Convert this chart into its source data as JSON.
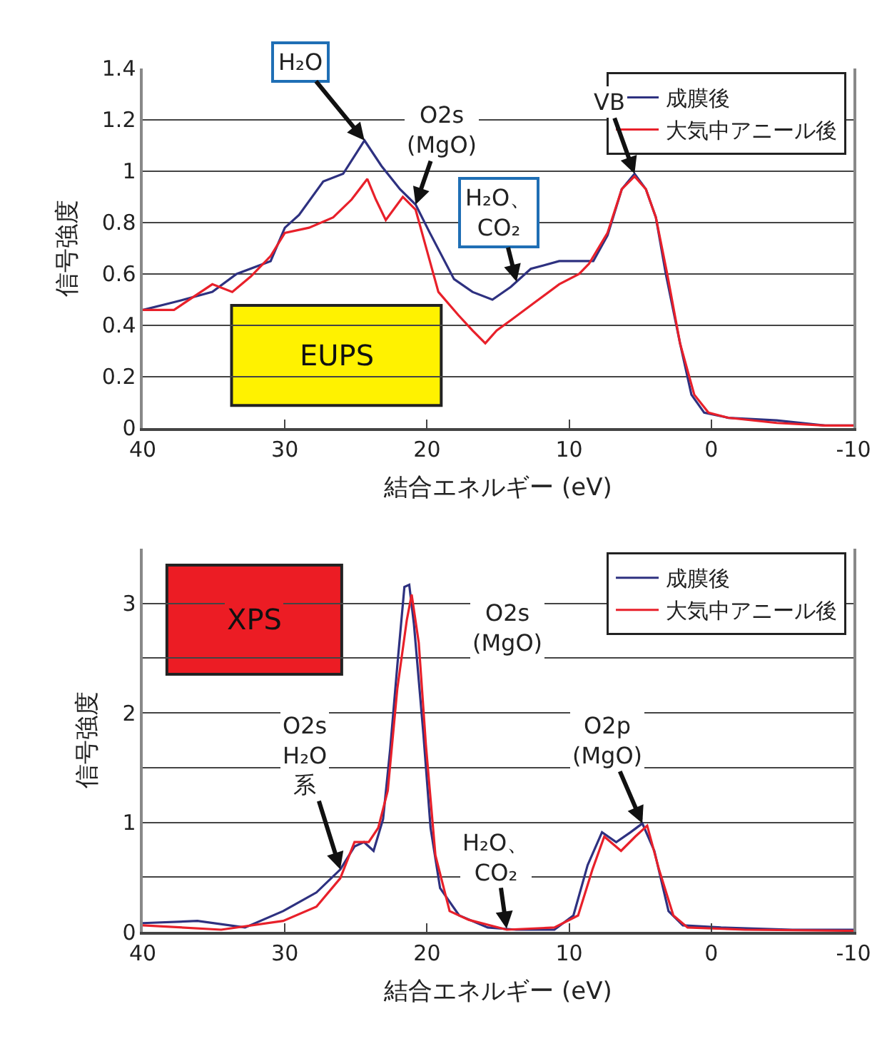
{
  "chart_data": [
    {
      "type": "line",
      "xlabel": "結合エネルギー (eV)",
      "ylabel": "信号強度",
      "xlim": [
        40,
        -10
      ],
      "xticks": [
        40,
        30,
        20,
        10,
        0,
        -10
      ],
      "ylim": [
        0,
        1.4
      ],
      "yticks": [
        0,
        0.2,
        0.4,
        0.6,
        0.8,
        1,
        1.2,
        1.4
      ],
      "grid": "y",
      "legend": "top right",
      "annotations": [
        {
          "text": "H₂O",
          "x": 24.4,
          "y": 1.12
        },
        {
          "text": "O2s\n(MgO)",
          "x": 20.8,
          "y": 0.87
        },
        {
          "text": "H₂O、\nCO₂",
          "x": 13.7,
          "y": 0.57
        },
        {
          "text": "VB",
          "x": 5.4,
          "y": 0.99
        },
        "EUPS"
      ],
      "series": [
        {
          "name": "成膜後",
          "color": "#2e3180",
          "x": [
            40,
            37.8,
            35.1,
            33.4,
            31.0,
            30.0,
            29.0,
            27.3,
            25.9,
            24.4,
            23.2,
            21.9,
            20.8,
            19.8,
            18.1,
            16.8,
            15.4,
            14.1,
            12.7,
            10.7,
            8.3,
            7.3,
            6.3,
            5.4,
            4.6,
            3.9,
            3.2,
            2.2,
            1.4,
            0.5,
            -1.2,
            -4.6,
            -8.0,
            -10
          ],
          "values": [
            0.46,
            0.49,
            0.53,
            0.6,
            0.65,
            0.78,
            0.83,
            0.96,
            0.99,
            1.12,
            1.02,
            0.93,
            0.87,
            0.76,
            0.58,
            0.53,
            0.5,
            0.55,
            0.62,
            0.65,
            0.65,
            0.75,
            0.93,
            0.99,
            0.93,
            0.82,
            0.6,
            0.33,
            0.13,
            0.06,
            0.04,
            0.03,
            0.01,
            0.01
          ]
        },
        {
          "name": "大気中アニール後",
          "color": "#e8202a",
          "x": [
            40,
            37.8,
            35.1,
            33.7,
            32.4,
            31.0,
            30.0,
            28.3,
            26.6,
            25.3,
            24.2,
            23.6,
            22.9,
            21.7,
            20.8,
            20.0,
            19.2,
            17.8,
            16.8,
            15.9,
            15.1,
            14.1,
            12.4,
            10.7,
            9.3,
            8.6,
            7.3,
            6.3,
            5.4,
            4.6,
            3.9,
            3.1,
            2.2,
            1.2,
            0.2,
            -1.2,
            -4.6,
            -8.0,
            -10
          ],
          "values": [
            0.46,
            0.46,
            0.56,
            0.53,
            0.59,
            0.67,
            0.76,
            0.78,
            0.82,
            0.89,
            0.97,
            0.89,
            0.81,
            0.9,
            0.85,
            0.69,
            0.53,
            0.44,
            0.38,
            0.33,
            0.38,
            0.42,
            0.49,
            0.56,
            0.6,
            0.64,
            0.76,
            0.93,
            0.98,
            0.93,
            0.82,
            0.6,
            0.33,
            0.13,
            0.06,
            0.04,
            0.02,
            0.01,
            0.01
          ]
        }
      ]
    },
    {
      "type": "line",
      "xlabel": "結合エネルギー (eV)",
      "ylabel": "信号強度",
      "xlim": [
        40,
        -10
      ],
      "xticks": [
        40,
        30,
        20,
        10,
        0,
        -10
      ],
      "ylim": [
        0,
        3.5
      ],
      "yticks": [
        0,
        {
          "value": 0.5,
          "label": null
        },
        1,
        {
          "value": 1.5,
          "label": null
        },
        2,
        {
          "value": 2.5,
          "label": null
        },
        3
      ],
      "grid": "y",
      "legend": "top right",
      "annotations": [
        {
          "text": "O2s\n(MgO)",
          "x": 21.25,
          "y": 3.17
        },
        {
          "text": "O2s\nH₂O\n系",
          "x": 26.1,
          "y": 0.57
        },
        {
          "text": "H₂O、\nCO₂",
          "x": 14.4,
          "y": 0.03
        },
        {
          "text": "O2p\n(MgO)",
          "x": 4.85,
          "y": 0.99
        },
        "XPS"
      ],
      "series": [
        {
          "name": "成膜後",
          "color": "#2e3180",
          "x": [
            40,
            36.15,
            32.8,
            30.12,
            27.78,
            26.1,
            25.1,
            24.43,
            23.76,
            23.09,
            22.59,
            22.09,
            21.59,
            21.25,
            20.92,
            20.25,
            19.75,
            19.08,
            17.74,
            15.73,
            13.72,
            11.04,
            9.7,
            8.7,
            7.69,
            6.69,
            5.68,
            4.85,
            4.01,
            3.01,
            2.0,
            -0.68,
            -5.7,
            -10
          ],
          "values": [
            0.08,
            0.1,
            0.04,
            0.19,
            0.36,
            0.57,
            0.78,
            0.82,
            0.74,
            1.03,
            1.67,
            2.43,
            3.15,
            3.17,
            2.81,
            1.8,
            0.95,
            0.4,
            0.15,
            0.04,
            0.02,
            0.02,
            0.15,
            0.61,
            0.91,
            0.82,
            0.91,
            0.99,
            0.74,
            0.19,
            0.06,
            0.04,
            0.02,
            0.02
          ]
        },
        {
          "name": "大気中アニール後",
          "color": "#e8202a",
          "x": [
            40,
            34.48,
            30.12,
            27.78,
            26.1,
            25.1,
            24.1,
            23.43,
            22.76,
            22.09,
            21.42,
            21.08,
            20.58,
            20.08,
            19.41,
            18.41,
            17.07,
            14.39,
            11.04,
            9.37,
            8.36,
            7.53,
            6.35,
            5.35,
            4.51,
            3.68,
            2.67,
            1.67,
            -2.35,
            -10
          ],
          "values": [
            0.06,
            0.02,
            0.1,
            0.23,
            0.49,
            0.82,
            0.82,
            0.95,
            1.29,
            2.22,
            2.85,
            3.08,
            2.64,
            1.71,
            0.7,
            0.19,
            0.11,
            0.02,
            0.04,
            0.15,
            0.57,
            0.87,
            0.74,
            0.87,
            0.97,
            0.57,
            0.15,
            0.04,
            0.02,
            0.01
          ]
        }
      ]
    }
  ]
}
